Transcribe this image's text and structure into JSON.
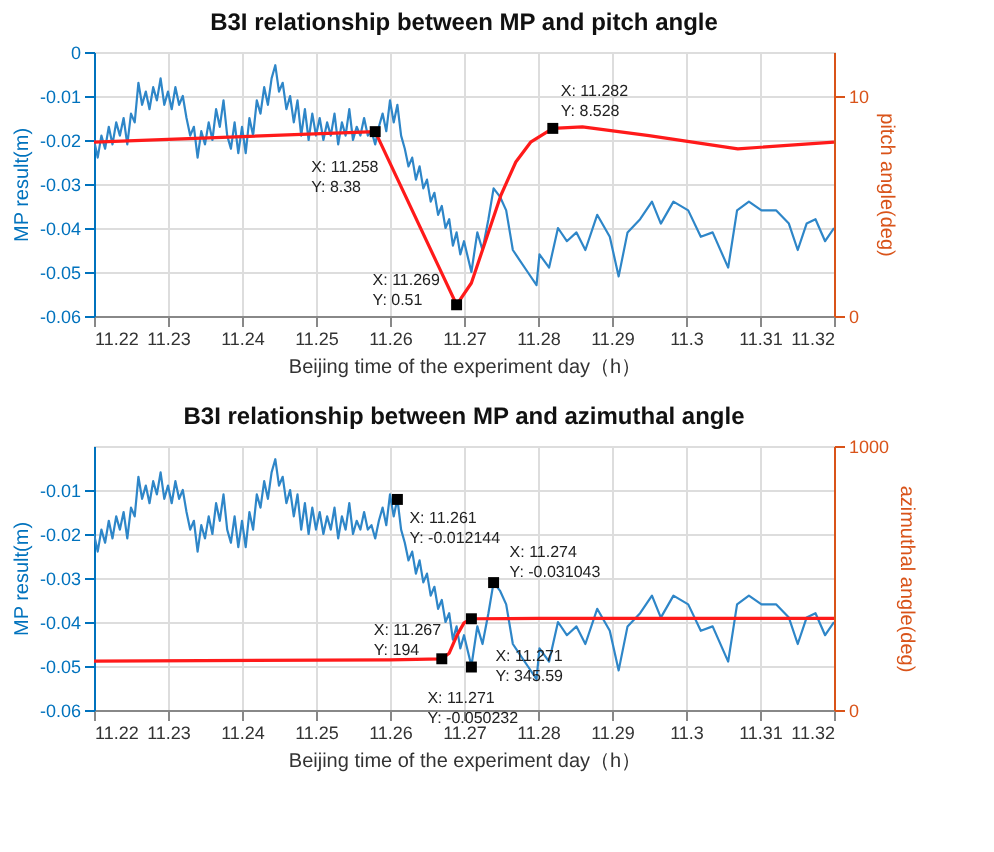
{
  "chart_data": [
    {
      "type": "line",
      "title": "B3I relationship between MP and pitch angle",
      "xlabel": "Beijing time of the experiment day（h）",
      "ylabel": "MP result(m)",
      "y2label": "pitch angle(deg)",
      "grid": true,
      "xlim": [
        11.22,
        11.32
      ],
      "xticks": [
        11.22,
        11.23,
        11.24,
        11.25,
        11.26,
        11.27,
        11.28,
        11.29,
        11.3,
        11.31,
        11.32
      ],
      "ylim": [
        -0.06,
        0
      ],
      "yticks": [
        -0.06,
        -0.05,
        -0.04,
        -0.03,
        -0.02,
        -0.01,
        0
      ],
      "y2lim": [
        0,
        12
      ],
      "y2ticks": [
        0,
        10
      ],
      "series": [
        {
          "color": "#2e86c8",
          "x": [
            11.22,
            11.2205,
            11.221,
            11.2215,
            11.222,
            11.2225,
            11.223,
            11.2235,
            11.224,
            11.2245,
            11.225,
            11.2255,
            11.226,
            11.2265,
            11.227,
            11.2275,
            11.228,
            11.2285,
            11.229,
            11.2295,
            11.23,
            11.2305,
            11.231,
            11.2315,
            11.232,
            11.2325,
            11.233,
            11.2335,
            11.234,
            11.2345,
            11.235,
            11.2355,
            11.236,
            11.2365,
            11.237,
            11.2375,
            11.238,
            11.2385,
            11.239,
            11.2395,
            11.24,
            11.2405,
            11.241,
            11.2415,
            11.242,
            11.2425,
            11.243,
            11.2435,
            11.244,
            11.2445,
            11.245,
            11.2455,
            11.246,
            11.2465,
            11.247,
            11.2475,
            11.248,
            11.2485,
            11.249,
            11.2495,
            11.25,
            11.2505,
            11.251,
            11.2515,
            11.252,
            11.2525,
            11.253,
            11.2535,
            11.254,
            11.2545,
            11.255,
            11.2555,
            11.256,
            11.2565,
            11.257,
            11.2575,
            11.258,
            11.2585,
            11.259,
            11.2595,
            11.26,
            11.2605,
            11.261,
            11.2615,
            11.262,
            11.2625,
            11.263,
            11.2635,
            11.264,
            11.2645,
            11.265,
            11.2655,
            11.266,
            11.2665,
            11.267,
            11.2675,
            11.268,
            11.2685,
            11.269,
            11.2695,
            11.27,
            11.271,
            11.2718,
            11.2725,
            11.2733,
            11.274,
            11.2749,
            11.2757,
            11.2766,
            11.2774,
            11.2786,
            11.2798,
            11.2802,
            11.2815,
            11.2827,
            11.2839,
            11.2852,
            11.2864,
            11.288,
            11.2897,
            11.2909,
            11.2921,
            11.2938,
            11.2954,
            11.2966,
            11.2983,
            11.3003,
            11.302,
            11.3036,
            11.3057,
            11.3069,
            11.3085,
            11.3102,
            11.3122,
            11.3139,
            11.3151,
            11.3163,
            11.3175,
            11.3188,
            11.32
          ],
          "values": [
            -0.02,
            -0.024,
            -0.019,
            -0.022,
            -0.017,
            -0.021,
            -0.016,
            -0.019,
            -0.015,
            -0.021,
            -0.014,
            -0.016,
            -0.007,
            -0.012,
            -0.009,
            -0.013,
            -0.008,
            -0.011,
            -0.006,
            -0.012,
            -0.009,
            -0.013,
            -0.008,
            -0.012,
            -0.01,
            -0.015,
            -0.019,
            -0.017,
            -0.024,
            -0.018,
            -0.021,
            -0.016,
            -0.02,
            -0.013,
            -0.017,
            -0.011,
            -0.019,
            -0.022,
            -0.016,
            -0.023,
            -0.017,
            -0.023,
            -0.015,
            -0.019,
            -0.011,
            -0.014,
            -0.008,
            -0.012,
            -0.006,
            -0.003,
            -0.009,
            -0.007,
            -0.013,
            -0.01,
            -0.016,
            -0.011,
            -0.019,
            -0.013,
            -0.02,
            -0.014,
            -0.019,
            -0.015,
            -0.02,
            -0.016,
            -0.019,
            -0.014,
            -0.021,
            -0.016,
            -0.019,
            -0.013,
            -0.02,
            -0.017,
            -0.019,
            -0.015,
            -0.019,
            -0.018,
            -0.021,
            -0.017,
            -0.014,
            -0.018,
            -0.011,
            -0.016,
            -0.012,
            -0.019,
            -0.022,
            -0.026,
            -0.024,
            -0.029,
            -0.026,
            -0.031,
            -0.029,
            -0.034,
            -0.032,
            -0.037,
            -0.035,
            -0.04,
            -0.038,
            -0.044,
            -0.041,
            -0.046,
            -0.043,
            -0.05,
            -0.041,
            -0.045,
            -0.038,
            -0.031,
            -0.033,
            -0.036,
            -0.045,
            -0.047,
            -0.05,
            -0.053,
            -0.046,
            -0.049,
            -0.04,
            -0.043,
            -0.041,
            -0.045,
            -0.037,
            -0.042,
            -0.051,
            -0.041,
            -0.038,
            -0.034,
            -0.039,
            -0.034,
            -0.036,
            -0.042,
            -0.041,
            -0.049,
            -0.036,
            -0.034,
            -0.036,
            -0.036,
            -0.039,
            -0.045,
            -0.039,
            -0.038,
            -0.043,
            -0.04
          ]
        },
        {
          "color": "#ff1a1a",
          "axis": "y2",
          "x": [
            11.22,
            11.258,
            11.2665,
            11.269,
            11.271,
            11.273,
            11.275,
            11.277,
            11.279,
            11.282,
            11.286,
            11.295,
            11.307,
            11.32
          ],
          "values": [
            7.9,
            8.38,
            2.3,
            0.51,
            1.5,
            3.5,
            5.5,
            7.0,
            7.9,
            8.528,
            8.6,
            8.2,
            7.6,
            7.9
          ]
        },
        {
          "type": "scatter",
          "marker": "square",
          "color": "#000000",
          "axis": "y2",
          "x": [
            11.258,
            11.269,
            11.282
          ],
          "values": [
            8.38,
            0.51,
            8.528
          ]
        }
      ],
      "annotations": [
        "X: 11.258\nY: 8.38",
        "X: 11.269\nY: 0.51",
        "X: 11.282\nY: 8.528"
      ]
    },
    {
      "type": "line",
      "title": "B3I relationship between MP and azimuthal angle",
      "xlabel": "Beijing time of the experiment day（h）",
      "ylabel": "MP result(m)",
      "y2label": "azimuthal angle(deg)",
      "grid": true,
      "xlim": [
        11.22,
        11.32
      ],
      "xticks": [
        11.22,
        11.23,
        11.24,
        11.25,
        11.26,
        11.27,
        11.28,
        11.29,
        11.3,
        11.31,
        11.32
      ],
      "ylim": [
        -0.06,
        0
      ],
      "yticks": [
        -0.06,
        -0.05,
        -0.04,
        -0.03,
        -0.02,
        -0.01
      ],
      "y2lim": [
        0,
        1000
      ],
      "y2ticks": [
        0,
        1000
      ],
      "series": [
        {
          "color": "#2e86c8",
          "x": [
            11.22,
            11.2205,
            11.221,
            11.2215,
            11.222,
            11.2225,
            11.223,
            11.2235,
            11.224,
            11.2245,
            11.225,
            11.2255,
            11.226,
            11.2265,
            11.227,
            11.2275,
            11.228,
            11.2285,
            11.229,
            11.2295,
            11.23,
            11.2305,
            11.231,
            11.2315,
            11.232,
            11.2325,
            11.233,
            11.2335,
            11.234,
            11.2345,
            11.235,
            11.2355,
            11.236,
            11.2365,
            11.237,
            11.2375,
            11.238,
            11.2385,
            11.239,
            11.2395,
            11.24,
            11.2405,
            11.241,
            11.2415,
            11.242,
            11.2425,
            11.243,
            11.2435,
            11.244,
            11.2445,
            11.245,
            11.2455,
            11.246,
            11.2465,
            11.247,
            11.2475,
            11.248,
            11.2485,
            11.249,
            11.2495,
            11.25,
            11.2505,
            11.251,
            11.2515,
            11.252,
            11.2525,
            11.253,
            11.2535,
            11.254,
            11.2545,
            11.255,
            11.2555,
            11.256,
            11.2565,
            11.257,
            11.2575,
            11.258,
            11.2585,
            11.259,
            11.2595,
            11.26,
            11.2605,
            11.261,
            11.2615,
            11.262,
            11.2625,
            11.263,
            11.2635,
            11.264,
            11.2645,
            11.265,
            11.2655,
            11.266,
            11.2665,
            11.267,
            11.2675,
            11.268,
            11.2685,
            11.269,
            11.2695,
            11.27,
            11.271,
            11.2718,
            11.2725,
            11.2733,
            11.274,
            11.2749,
            11.2757,
            11.2766,
            11.2774,
            11.2786,
            11.2798,
            11.2802,
            11.2815,
            11.2827,
            11.2839,
            11.2852,
            11.2864,
            11.288,
            11.2897,
            11.2909,
            11.2921,
            11.2938,
            11.2954,
            11.2966,
            11.2983,
            11.3003,
            11.302,
            11.3036,
            11.3057,
            11.3069,
            11.3085,
            11.3102,
            11.3122,
            11.3139,
            11.3151,
            11.3163,
            11.3175,
            11.3188,
            11.32
          ],
          "values": [
            -0.02,
            -0.024,
            -0.019,
            -0.022,
            -0.017,
            -0.021,
            -0.016,
            -0.019,
            -0.015,
            -0.021,
            -0.014,
            -0.016,
            -0.007,
            -0.012,
            -0.009,
            -0.013,
            -0.008,
            -0.011,
            -0.006,
            -0.012,
            -0.009,
            -0.013,
            -0.008,
            -0.012,
            -0.01,
            -0.015,
            -0.019,
            -0.017,
            -0.024,
            -0.018,
            -0.021,
            -0.016,
            -0.02,
            -0.013,
            -0.017,
            -0.011,
            -0.019,
            -0.022,
            -0.016,
            -0.023,
            -0.017,
            -0.023,
            -0.015,
            -0.019,
            -0.011,
            -0.014,
            -0.008,
            -0.012,
            -0.006,
            -0.003,
            -0.009,
            -0.007,
            -0.013,
            -0.01,
            -0.016,
            -0.011,
            -0.019,
            -0.013,
            -0.02,
            -0.014,
            -0.019,
            -0.015,
            -0.02,
            -0.016,
            -0.019,
            -0.014,
            -0.021,
            -0.016,
            -0.019,
            -0.013,
            -0.02,
            -0.017,
            -0.019,
            -0.015,
            -0.019,
            -0.018,
            -0.021,
            -0.017,
            -0.014,
            -0.018,
            -0.011,
            -0.016,
            -0.012,
            -0.019,
            -0.022,
            -0.026,
            -0.024,
            -0.029,
            -0.026,
            -0.031,
            -0.029,
            -0.034,
            -0.032,
            -0.037,
            -0.035,
            -0.04,
            -0.038,
            -0.044,
            -0.041,
            -0.046,
            -0.043,
            -0.05,
            -0.041,
            -0.045,
            -0.038,
            -0.031,
            -0.033,
            -0.036,
            -0.045,
            -0.047,
            -0.05,
            -0.053,
            -0.046,
            -0.049,
            -0.04,
            -0.043,
            -0.041,
            -0.045,
            -0.037,
            -0.042,
            -0.051,
            -0.041,
            -0.038,
            -0.034,
            -0.039,
            -0.034,
            -0.036,
            -0.042,
            -0.041,
            -0.049,
            -0.036,
            -0.034,
            -0.036,
            -0.036,
            -0.039,
            -0.045,
            -0.039,
            -0.038,
            -0.043,
            -0.04
          ]
        },
        {
          "color": "#ff1a1a",
          "axis": "y2",
          "x": [
            11.22,
            11.26,
            11.267,
            11.268,
            11.269,
            11.27,
            11.271,
            11.28,
            11.3,
            11.32
          ],
          "values": [
            185,
            190,
            194,
            215,
            280,
            330,
            345.59,
            347,
            347,
            347
          ]
        },
        {
          "type": "scatter",
          "marker": "square",
          "color": "#000000",
          "axis": "y2",
          "x": [
            11.267,
            11.271
          ],
          "values": [
            194,
            345.59
          ]
        }
      ],
      "annotations": [
        {
          "text": "X: 11.261\nY: -0.012144",
          "x": 11.261,
          "y": -0.012144
        },
        "X: 11.267\nY: 194",
        {
          "text": "X: 11.271\nY: -0.050232",
          "x": 11.271,
          "y": -0.050232
        },
        {
          "text": "X: 11.274\nY: -0.031043",
          "x": 11.274,
          "y": -0.031043
        },
        "X: 11.271\nY: 345.59"
      ]
    }
  ]
}
